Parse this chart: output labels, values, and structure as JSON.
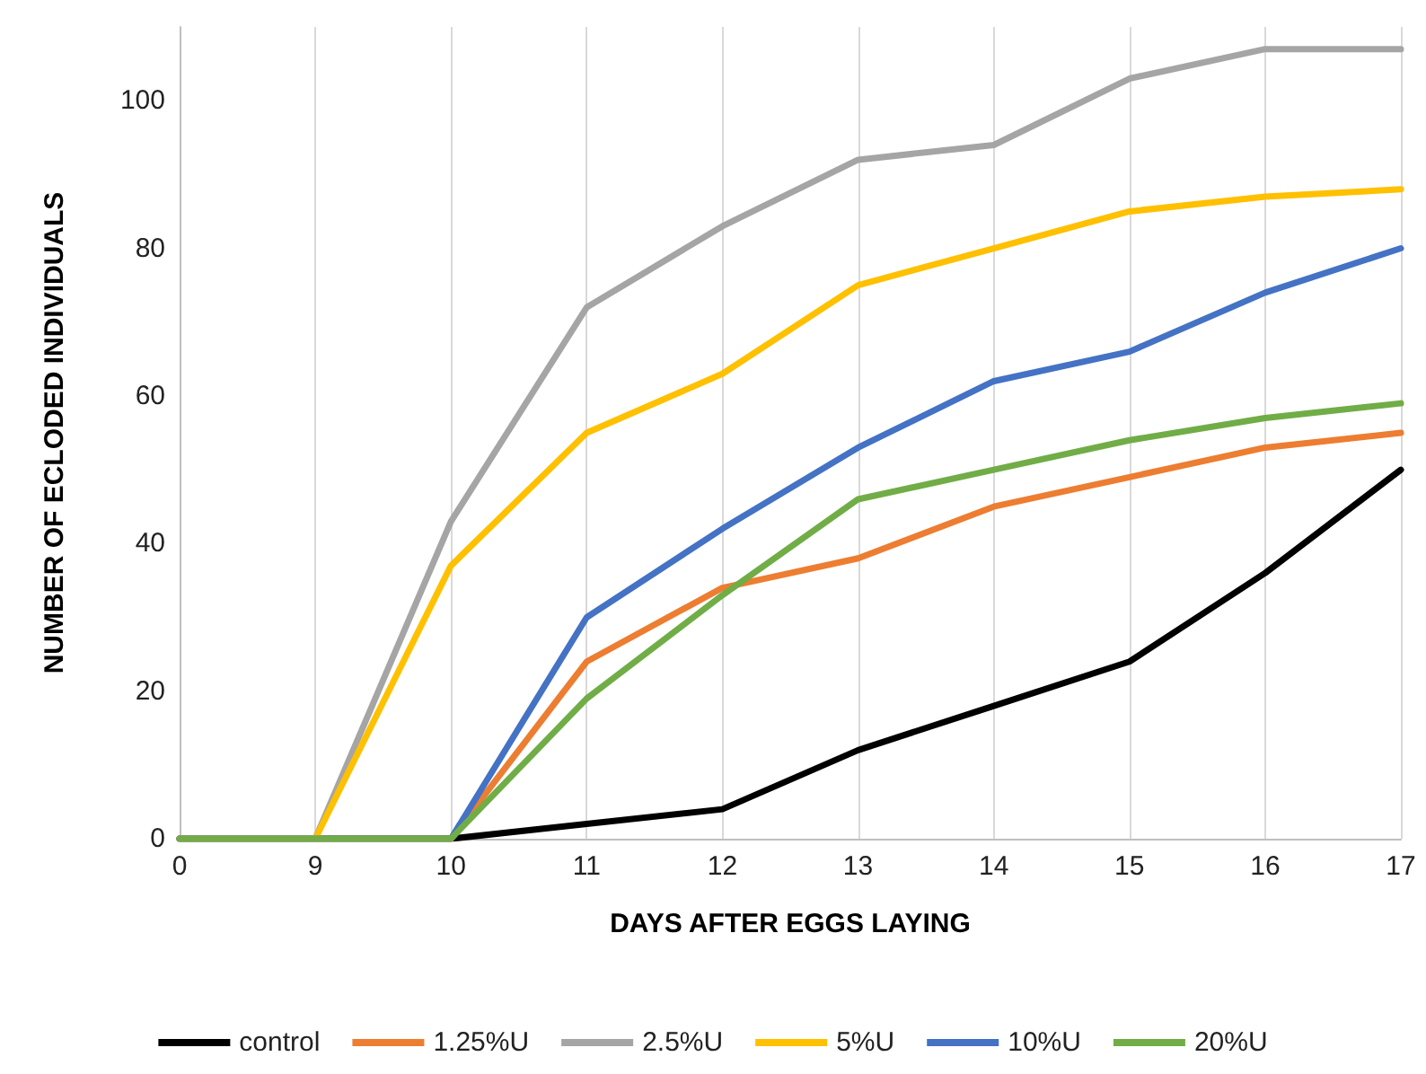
{
  "chart_data": {
    "type": "line",
    "xlabel": "DAYS AFTER EGGS LAYING",
    "ylabel": "NUMBER OF ECLODED INDIVIDUALS",
    "categories": [
      "0",
      "9",
      "10",
      "11",
      "12",
      "13",
      "14",
      "15",
      "16",
      "17"
    ],
    "series": [
      {
        "name": "control",
        "color": "#000000",
        "values": [
          0,
          0,
          0,
          2,
          4,
          12,
          18,
          24,
          36,
          50
        ]
      },
      {
        "name": "1.25%U",
        "color": "#ed7d31",
        "values": [
          0,
          0,
          0,
          24,
          34,
          38,
          45,
          49,
          53,
          55
        ]
      },
      {
        "name": "2.5%U",
        "color": "#a5a5a5",
        "values": [
          0,
          0,
          43,
          72,
          83,
          92,
          94,
          103,
          107,
          107
        ]
      },
      {
        "name": "5%U",
        "color": "#ffc000",
        "values": [
          0,
          0,
          37,
          55,
          63,
          75,
          80,
          85,
          87,
          88
        ]
      },
      {
        "name": "10%U",
        "color": "#4472c4",
        "values": [
          0,
          0,
          0,
          30,
          42,
          53,
          62,
          66,
          74,
          80
        ]
      },
      {
        "name": "20%U",
        "color": "#70ad47",
        "values": [
          0,
          0,
          0,
          19,
          33,
          46,
          50,
          54,
          57,
          59
        ]
      }
    ],
    "ylim": [
      0,
      110
    ],
    "yticks": [
      0,
      20,
      40,
      60,
      80,
      100
    ],
    "grid": "x",
    "legend": "bottom",
    "marker": "none",
    "line_style": "solid"
  }
}
